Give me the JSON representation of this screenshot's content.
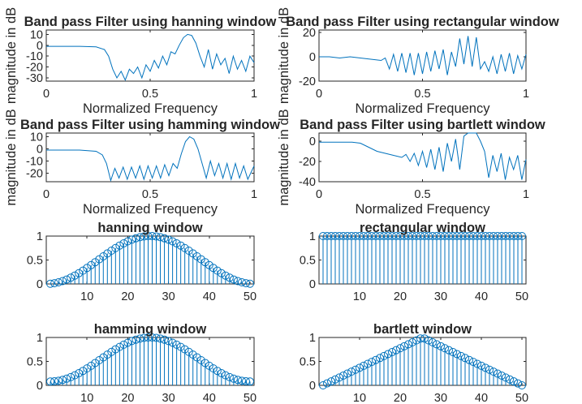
{
  "chart_data": [
    {
      "type": "line",
      "title": "Band pass Filter using hanning window",
      "xlabel": "Normalized Frequency",
      "ylabel": "magnitude in dB",
      "xlim": [
        0,
        1
      ],
      "ylim": [
        -33,
        14
      ],
      "xticks": [
        "0",
        "0.5",
        "1"
      ],
      "yticks": [
        "10",
        "0",
        "-10",
        "-20",
        "-30"
      ],
      "x": [
        0,
        0.08,
        0.16,
        0.24,
        0.28,
        0.3,
        0.32,
        0.34,
        0.36,
        0.38,
        0.4,
        0.42,
        0.44,
        0.46,
        0.48,
        0.5,
        0.52,
        0.54,
        0.56,
        0.58,
        0.6,
        0.62,
        0.64,
        0.66,
        0.68,
        0.7,
        0.72,
        0.74,
        0.76,
        0.78,
        0.8,
        0.82,
        0.84,
        0.86,
        0.88,
        0.9,
        0.92,
        0.94,
        0.96,
        0.98,
        1
      ],
      "values": [
        -1,
        -1,
        -1,
        -1.5,
        -4,
        -10,
        -22,
        -30,
        -24,
        -32,
        -22,
        -26,
        -20,
        -30,
        -18,
        -24,
        -14,
        -21,
        -10,
        -18,
        -6,
        -8,
        0,
        7,
        10,
        9,
        2,
        -10,
        -20,
        -4,
        -22,
        -8,
        -18,
        -12,
        -26,
        -10,
        -22,
        -14,
        -24,
        -10,
        -16
      ]
    },
    {
      "type": "line",
      "title": "Band pass Filter using rectangular window",
      "xlabel": "Normalized Frequency",
      "ylabel": "magnitude in dB",
      "xlim": [
        0,
        1
      ],
      "ylim": [
        -20,
        22
      ],
      "xticks": [
        "0",
        "0.5",
        "1"
      ],
      "yticks": [
        "20",
        "0",
        "-20"
      ],
      "x": [
        0,
        0.05,
        0.1,
        0.15,
        0.2,
        0.25,
        0.3,
        0.32,
        0.34,
        0.36,
        0.38,
        0.4,
        0.42,
        0.44,
        0.46,
        0.48,
        0.5,
        0.52,
        0.54,
        0.56,
        0.58,
        0.6,
        0.62,
        0.64,
        0.66,
        0.68,
        0.7,
        0.72,
        0.74,
        0.76,
        0.78,
        0.8,
        0.82,
        0.84,
        0.86,
        0.88,
        0.9,
        0.92,
        0.94,
        0.96,
        0.98,
        1
      ],
      "values": [
        0,
        0,
        -1,
        0,
        -1,
        -2,
        -3,
        -1,
        -10,
        2,
        -12,
        3,
        -13,
        3,
        -15,
        3,
        -14,
        4,
        -12,
        5,
        -10,
        6,
        -15,
        4,
        -8,
        15,
        -6,
        17,
        -8,
        16,
        -10,
        -4,
        -12,
        0,
        -14,
        2,
        -12,
        3,
        -14,
        1,
        -10,
        2
      ]
    },
    {
      "type": "line",
      "title": "Band pass Filter using hamming window",
      "xlabel": "Normalized Frequency",
      "ylabel": "magnitude in dB",
      "xlim": [
        0,
        1
      ],
      "ylim": [
        -27,
        13
      ],
      "xticks": [
        "0",
        "0.5",
        "1"
      ],
      "yticks": [
        "10",
        "0",
        "-10",
        "-20"
      ],
      "x": [
        0,
        0.08,
        0.16,
        0.24,
        0.27,
        0.29,
        0.31,
        0.33,
        0.35,
        0.37,
        0.39,
        0.41,
        0.43,
        0.45,
        0.47,
        0.49,
        0.51,
        0.53,
        0.55,
        0.57,
        0.59,
        0.61,
        0.63,
        0.65,
        0.67,
        0.69,
        0.71,
        0.73,
        0.75,
        0.77,
        0.79,
        0.81,
        0.83,
        0.85,
        0.87,
        0.89,
        0.91,
        0.93,
        0.95,
        0.97,
        1
      ],
      "values": [
        -1,
        -1,
        -1,
        -2,
        -5,
        -12,
        -26,
        -16,
        -24,
        -15,
        -25,
        -15,
        -24,
        -14,
        -25,
        -14,
        -24,
        -14,
        -24,
        -13,
        -22,
        -12,
        -16,
        -4,
        6,
        10,
        8,
        0,
        -12,
        -24,
        -10,
        -22,
        -12,
        -24,
        -12,
        -25,
        -12,
        -24,
        -14,
        -25,
        -14
      ]
    },
    {
      "type": "line",
      "title": "Band pass Filter using bartlett window",
      "xlabel": "Normalized Frequency",
      "ylabel": "magnitude in dB",
      "xlim": [
        0,
        1
      ],
      "ylim": [
        -40,
        8
      ],
      "xticks": [
        "0",
        "0.5",
        "1"
      ],
      "yticks": [
        "0",
        "-20",
        "-40"
      ],
      "x": [
        0,
        0.08,
        0.16,
        0.2,
        0.24,
        0.28,
        0.32,
        0.36,
        0.4,
        0.42,
        0.44,
        0.46,
        0.48,
        0.5,
        0.52,
        0.54,
        0.56,
        0.58,
        0.6,
        0.62,
        0.64,
        0.66,
        0.68,
        0.7,
        0.72,
        0.74,
        0.76,
        0.78,
        0.8,
        0.82,
        0.84,
        0.86,
        0.88,
        0.9,
        0.92,
        0.94,
        0.96,
        0.98,
        1
      ],
      "values": [
        -1,
        -1,
        -1,
        -2,
        -6,
        -10,
        -12,
        -14,
        -16,
        -13,
        -20,
        -12,
        -24,
        -10,
        -26,
        -8,
        -28,
        -6,
        -30,
        -2,
        -20,
        2,
        -28,
        5,
        8,
        10,
        9,
        0,
        -10,
        -36,
        -14,
        -30,
        -12,
        -38,
        -16,
        -28,
        -14,
        -38,
        -18
      ]
    },
    {
      "type": "stem",
      "title": "hanning window",
      "xlim": [
        0,
        51
      ],
      "ylim": [
        0,
        1
      ],
      "xticks": [
        "10",
        "20",
        "30",
        "40",
        "50"
      ],
      "yticks": [
        "1",
        "0.5",
        "0"
      ],
      "window": "hanning",
      "n": 50
    },
    {
      "type": "stem",
      "title": "rectangular window",
      "xlim": [
        0,
        51
      ],
      "ylim": [
        0,
        1
      ],
      "xticks": [
        "10",
        "20",
        "30",
        "40",
        "50"
      ],
      "yticks": [
        "1",
        "0.5",
        "0"
      ],
      "window": "rectangular",
      "n": 50
    },
    {
      "type": "stem",
      "title": "hamming window",
      "xlim": [
        0,
        51
      ],
      "ylim": [
        0,
        1
      ],
      "xticks": [
        "10",
        "20",
        "30",
        "40",
        "50"
      ],
      "yticks": [
        "1",
        "0.5",
        "0"
      ],
      "window": "hamming",
      "n": 50
    },
    {
      "type": "stem",
      "title": "bartlett window",
      "xlim": [
        0,
        51
      ],
      "ylim": [
        0,
        1
      ],
      "xticks": [
        "10",
        "20",
        "30",
        "40",
        "50"
      ],
      "yticks": [
        "1",
        "0.5",
        "0"
      ],
      "window": "bartlett",
      "n": 50
    }
  ],
  "colors": {
    "series": "#0072bd",
    "axes": "#262626",
    "background": "#ffffff"
  }
}
